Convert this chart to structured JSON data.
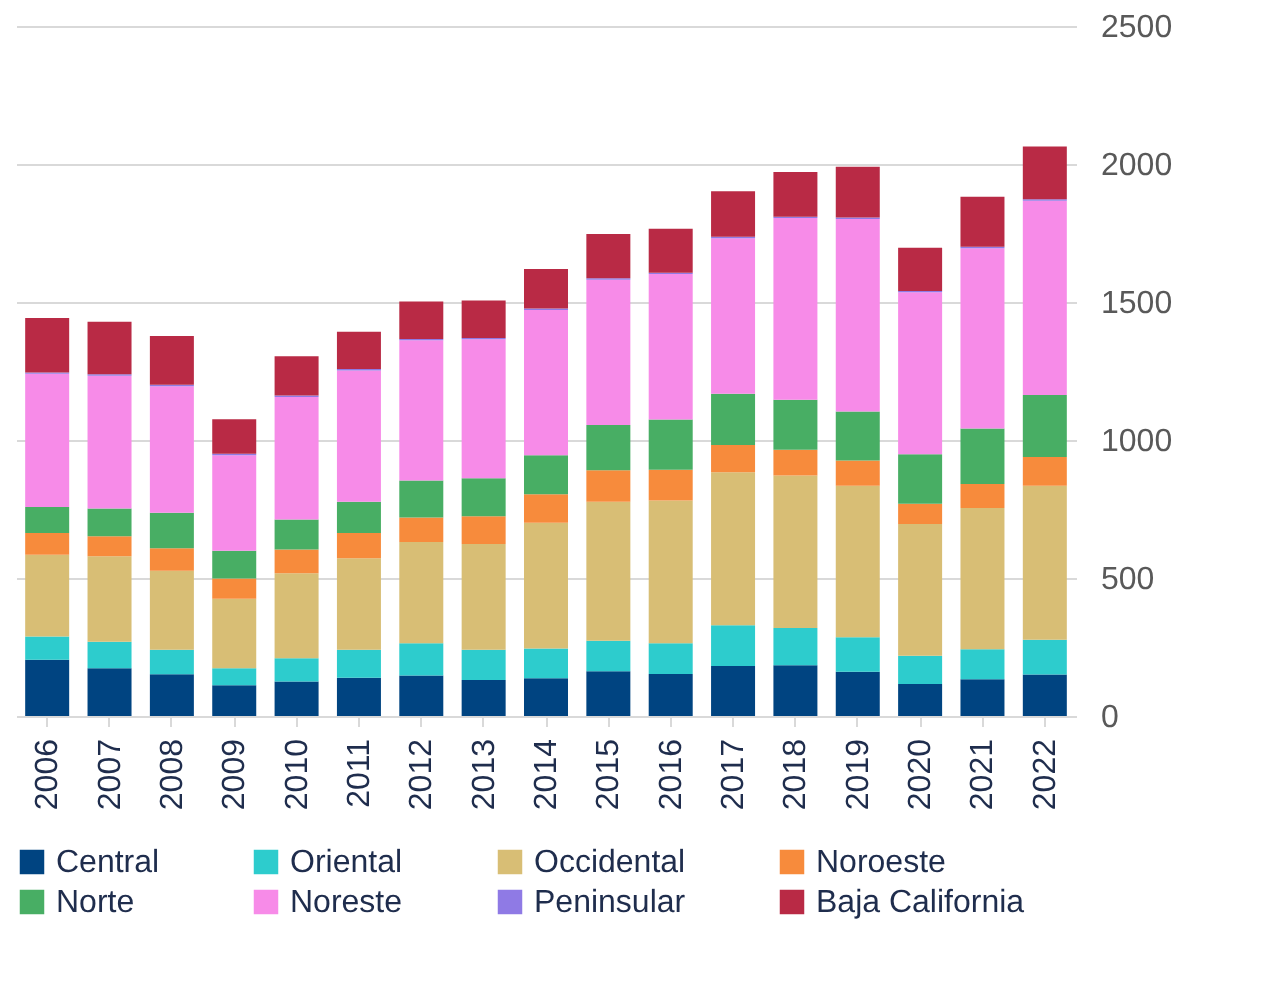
{
  "chart_data": {
    "type": "bar",
    "stacked": true,
    "categories": [
      "2006",
      "2007",
      "2008",
      "2009",
      "2010",
      "2011",
      "2012",
      "2013",
      "2014",
      "2015",
      "2016",
      "2017",
      "2018",
      "2019",
      "2020",
      "2021",
      "2022"
    ],
    "series": [
      {
        "name": "Central",
        "color": "#004481",
        "values": [
          204,
          173,
          151,
          111,
          125,
          139,
          147,
          130,
          137,
          162,
          152,
          181,
          184,
          160,
          116,
          133,
          150
        ]
      },
      {
        "name": "Oriental",
        "color": "#2dcccd",
        "values": [
          84,
          96,
          89,
          62,
          84,
          101,
          117,
          110,
          108,
          111,
          112,
          148,
          135,
          125,
          102,
          109,
          126
        ]
      },
      {
        "name": "Occidental",
        "color": "#d8be75",
        "values": [
          296,
          310,
          286,
          252,
          308,
          332,
          366,
          383,
          455,
          503,
          517,
          554,
          552,
          549,
          478,
          512,
          558
        ]
      },
      {
        "name": "Noroeste",
        "color": "#f78b3c",
        "values": [
          79,
          72,
          82,
          73,
          86,
          91,
          89,
          101,
          103,
          114,
          111,
          99,
          94,
          92,
          73,
          87,
          104
        ]
      },
      {
        "name": "Norte",
        "color": "#48ae64",
        "values": [
          94,
          101,
          128,
          101,
          109,
          113,
          134,
          137,
          142,
          164,
          182,
          186,
          181,
          177,
          179,
          201,
          225
        ]
      },
      {
        "name": "Noreste",
        "color": "#f78be8",
        "values": [
          483,
          481,
          459,
          346,
          444,
          476,
          508,
          504,
          526,
          527,
          527,
          563,
          658,
          698,
          587,
          653,
          704
        ]
      },
      {
        "name": "Peninsular",
        "color": "#8f7ae5",
        "values": [
          5,
          5,
          5,
          5,
          5,
          5,
          5,
          5,
          5,
          5,
          5,
          5,
          5,
          5,
          5,
          5,
          5
        ]
      },
      {
        "name": "Baja California",
        "color": "#b92a45",
        "values": [
          197,
          190,
          177,
          125,
          142,
          135,
          136,
          135,
          144,
          160,
          159,
          165,
          162,
          184,
          157,
          181,
          191
        ]
      }
    ],
    "ylim": [
      0,
      2500
    ],
    "yticks": [
      0,
      500,
      1000,
      1500,
      2000,
      2500
    ],
    "grid": "y",
    "legend": "bottom"
  }
}
